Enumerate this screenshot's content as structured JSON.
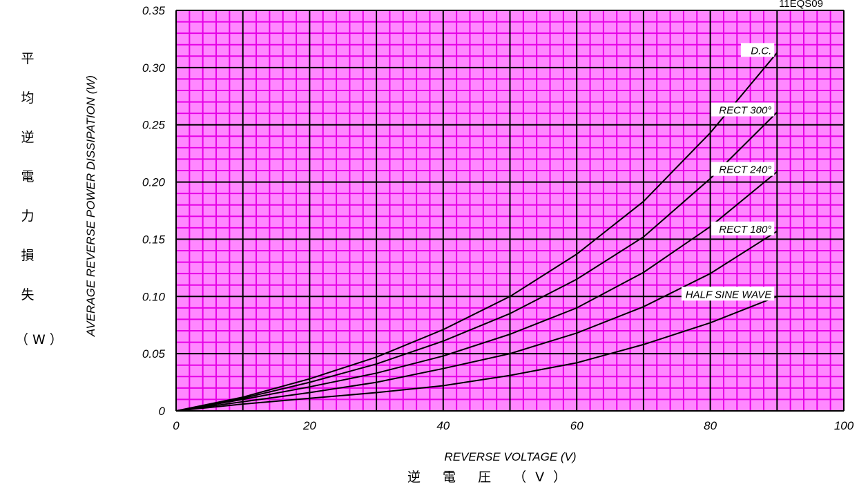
{
  "chart_data": {
    "type": "line",
    "code": "11EQS09",
    "xlabel": "REVERSE VOLTAGE (V)",
    "ylabel": "AVERAGE REVERSE POWER DISSIPATION (W)",
    "xlabel_jp": "逆 電 圧 （V）",
    "ylabel_jp_chars": [
      "平",
      "均",
      "逆",
      "電",
      "力",
      "損",
      "失"
    ],
    "ylabel_jp_unit": "（W）",
    "xlim": [
      0,
      100
    ],
    "ylim": [
      0,
      0.35
    ],
    "x_ticks": [
      "0",
      "20",
      "40",
      "60",
      "80",
      "100"
    ],
    "y_ticks": [
      "0",
      "0.05",
      "0.10",
      "0.15",
      "0.20",
      "0.25",
      "0.30",
      "0.35"
    ],
    "grid": true,
    "colors": {
      "grid_minor": "#e600e6",
      "grid_major": "#000000",
      "background": "#ff88ff",
      "curve": "#000000"
    },
    "series": [
      {
        "name": "D.C.",
        "label_at_x": 90,
        "x": [
          0,
          10,
          20,
          30,
          40,
          50,
          60,
          70,
          80,
          90
        ],
        "y": [
          0,
          0.012,
          0.028,
          0.047,
          0.071,
          0.1,
          0.137,
          0.183,
          0.243,
          0.313
        ]
      },
      {
        "name": "RECT 300°",
        "label_at_x": 90,
        "x": [
          0,
          10,
          20,
          30,
          40,
          50,
          60,
          70,
          80,
          90
        ],
        "y": [
          0,
          0.011,
          0.025,
          0.041,
          0.061,
          0.085,
          0.115,
          0.152,
          0.203,
          0.261
        ]
      },
      {
        "name": "RECT 240°",
        "label_at_x": 90,
        "x": [
          0,
          10,
          20,
          30,
          40,
          50,
          60,
          70,
          80,
          90
        ],
        "y": [
          0,
          0.01,
          0.021,
          0.033,
          0.048,
          0.067,
          0.09,
          0.121,
          0.161,
          0.209
        ]
      },
      {
        "name": "RECT 180°",
        "label_at_x": 90,
        "x": [
          0,
          10,
          20,
          30,
          40,
          50,
          60,
          70,
          80,
          90
        ],
        "y": [
          0,
          0.008,
          0.016,
          0.025,
          0.037,
          0.05,
          0.068,
          0.091,
          0.12,
          0.157
        ]
      },
      {
        "name": "HALF SINE WAVE",
        "label_at_x": 90,
        "x": [
          0,
          10,
          20,
          30,
          40,
          50,
          60,
          70,
          80,
          90
        ],
        "y": [
          0,
          0.006,
          0.011,
          0.016,
          0.022,
          0.031,
          0.042,
          0.058,
          0.077,
          0.1
        ]
      }
    ]
  }
}
